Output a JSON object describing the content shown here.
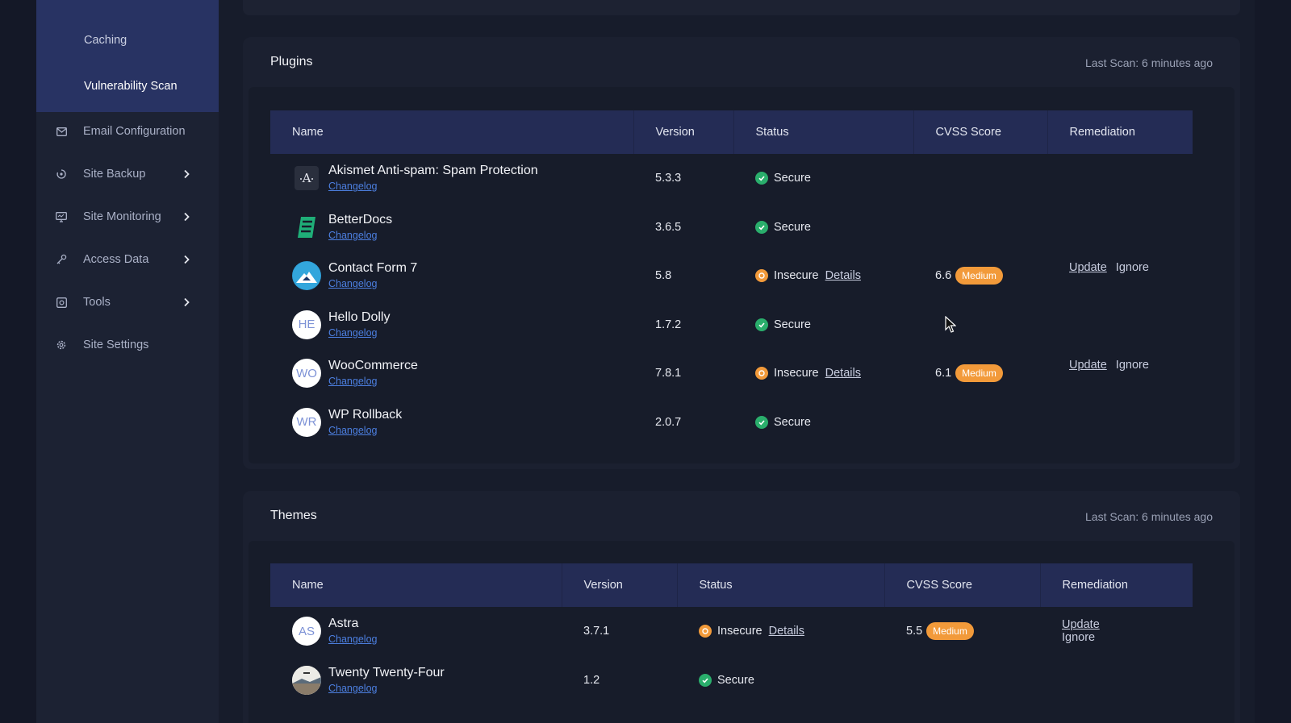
{
  "sidebar": {
    "sub_items": [
      "Caching",
      "Vulnerability Scan"
    ],
    "active_sub_item": "Vulnerability Scan",
    "items": [
      {
        "label": "Email Configuration",
        "icon": "mail-icon",
        "has_chevron": false
      },
      {
        "label": "Site Backup",
        "icon": "backup-icon",
        "has_chevron": true
      },
      {
        "label": "Site Monitoring",
        "icon": "monitor-icon",
        "has_chevron": true
      },
      {
        "label": "Access Data",
        "icon": "key-icon",
        "has_chevron": true
      },
      {
        "label": "Tools",
        "icon": "tools-icon",
        "has_chevron": true
      },
      {
        "label": "Site Settings",
        "icon": "gear-icon",
        "has_chevron": false
      }
    ]
  },
  "plugins": {
    "title": "Plugins",
    "last_scan": "Last Scan: 6 minutes ago",
    "columns": [
      "Name",
      "Version",
      "Status",
      "CVSS Score",
      "Remediation"
    ],
    "rows": [
      {
        "name": "Akismet Anti-spam: Spam Protection",
        "icon": "akismet-icon",
        "changelog": "Changelog",
        "version": "5.3.3",
        "status": "Secure"
      },
      {
        "name": "BetterDocs",
        "icon": "betterdocs-icon",
        "changelog": "Changelog",
        "version": "3.6.5",
        "status": "Secure"
      },
      {
        "name": "Contact Form 7",
        "icon": "contact-form-7-icon",
        "changelog": "Changelog",
        "version": "5.8",
        "status": "Insecure",
        "details": "Details",
        "cvss": "6.6",
        "severity": "Medium",
        "update": "Update",
        "ignore": "Ignore"
      },
      {
        "name": "Hello Dolly",
        "initials": "HE",
        "changelog": "Changelog",
        "version": "1.7.2",
        "status": "Secure"
      },
      {
        "name": "WooCommerce",
        "initials": "WO",
        "changelog": "Changelog",
        "version": "7.8.1",
        "status": "Insecure",
        "details": "Details",
        "cvss": "6.1",
        "severity": "Medium",
        "update": "Update",
        "ignore": "Ignore"
      },
      {
        "name": "WP Rollback",
        "initials": "WR",
        "changelog": "Changelog",
        "version": "2.0.7",
        "status": "Secure"
      }
    ]
  },
  "themes": {
    "title": "Themes",
    "last_scan": "Last Scan: 6 minutes ago",
    "columns": [
      "Name",
      "Version",
      "Status",
      "CVSS Score",
      "Remediation"
    ],
    "rows": [
      {
        "name": "Astra",
        "initials": "AS",
        "changelog": "Changelog",
        "version": "3.7.1",
        "status": "Insecure",
        "details": "Details",
        "cvss": "5.5",
        "severity": "Medium",
        "update": "Update",
        "ignore": "Ignore"
      },
      {
        "name": "Twenty Twenty-Four",
        "icon": "twenty-twenty-four-icon",
        "changelog": "Changelog",
        "version": "1.2",
        "status": "Secure"
      }
    ]
  },
  "colors": {
    "secure": "#2aae6c",
    "insecure": "#f29a3a",
    "link": "#4c7fe0",
    "table_header": "#242c55",
    "sidebar_active": "#283363"
  }
}
